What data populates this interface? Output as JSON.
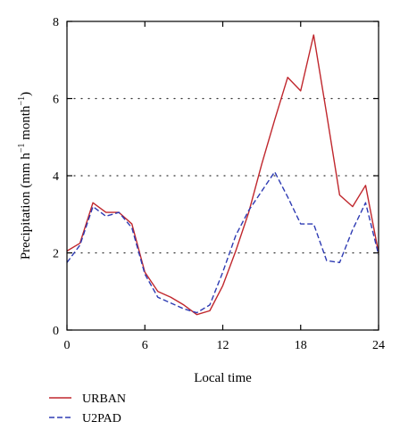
{
  "chart_data": {
    "type": "line",
    "xlabel": "Local time",
    "ylabel": "Precipitation (mm h",
    "ylabel_sup1": "−1",
    "ylabel_mid": " month",
    "ylabel_sup2": "−1",
    "ylabel_end": ")",
    "xlim": [
      0,
      24
    ],
    "ylim": [
      0,
      8
    ],
    "x_ticks": [
      0,
      6,
      12,
      18,
      24
    ],
    "y_ticks": [
      0,
      2,
      4,
      6,
      8
    ],
    "x_tick_labels": [
      "0",
      "6",
      "12",
      "18",
      "24"
    ],
    "y_tick_labels": [
      "0",
      "2",
      "4",
      "6",
      "8"
    ],
    "grid": "horizontal dotted at 2, 4, 6",
    "legend_position": "bottom-left",
    "series": [
      {
        "name": "URBAN",
        "color": "#c0272d",
        "style": "solid",
        "points": [
          [
            0,
            2.05
          ],
          [
            1,
            2.25
          ],
          [
            2,
            3.3
          ],
          [
            3,
            3.05
          ],
          [
            4,
            3.05
          ],
          [
            5,
            2.75
          ],
          [
            6,
            1.5
          ],
          [
            7,
            1.0
          ],
          [
            8,
            0.85
          ],
          [
            9,
            0.65
          ],
          [
            10,
            0.4
          ],
          [
            11,
            0.5
          ],
          [
            12,
            1.15
          ],
          [
            13,
            2.05
          ],
          [
            14,
            3.05
          ],
          [
            15,
            4.3
          ],
          [
            16,
            5.45
          ],
          [
            17,
            6.55
          ],
          [
            18,
            6.2
          ],
          [
            19,
            7.65
          ],
          [
            20,
            5.6
          ],
          [
            21,
            3.5
          ],
          [
            22,
            3.2
          ],
          [
            23,
            3.75
          ],
          [
            24,
            2.0
          ]
        ]
      },
      {
        "name": "U2PAD",
        "color": "#2e3bb3",
        "style": "dashed",
        "points": [
          [
            0,
            1.75
          ],
          [
            1,
            2.2
          ],
          [
            2,
            3.2
          ],
          [
            3,
            2.95
          ],
          [
            4,
            3.05
          ],
          [
            5,
            2.65
          ],
          [
            6,
            1.45
          ],
          [
            7,
            0.85
          ],
          [
            8,
            0.7
          ],
          [
            9,
            0.55
          ],
          [
            10,
            0.45
          ],
          [
            11,
            0.65
          ],
          [
            12,
            1.5
          ],
          [
            13,
            2.45
          ],
          [
            14,
            3.1
          ],
          [
            15,
            3.6
          ],
          [
            16,
            4.1
          ],
          [
            17,
            3.45
          ],
          [
            18,
            2.75
          ],
          [
            19,
            2.75
          ],
          [
            20,
            1.8
          ],
          [
            21,
            1.75
          ],
          [
            22,
            2.6
          ],
          [
            23,
            3.3
          ],
          [
            24,
            1.95
          ]
        ]
      }
    ]
  }
}
